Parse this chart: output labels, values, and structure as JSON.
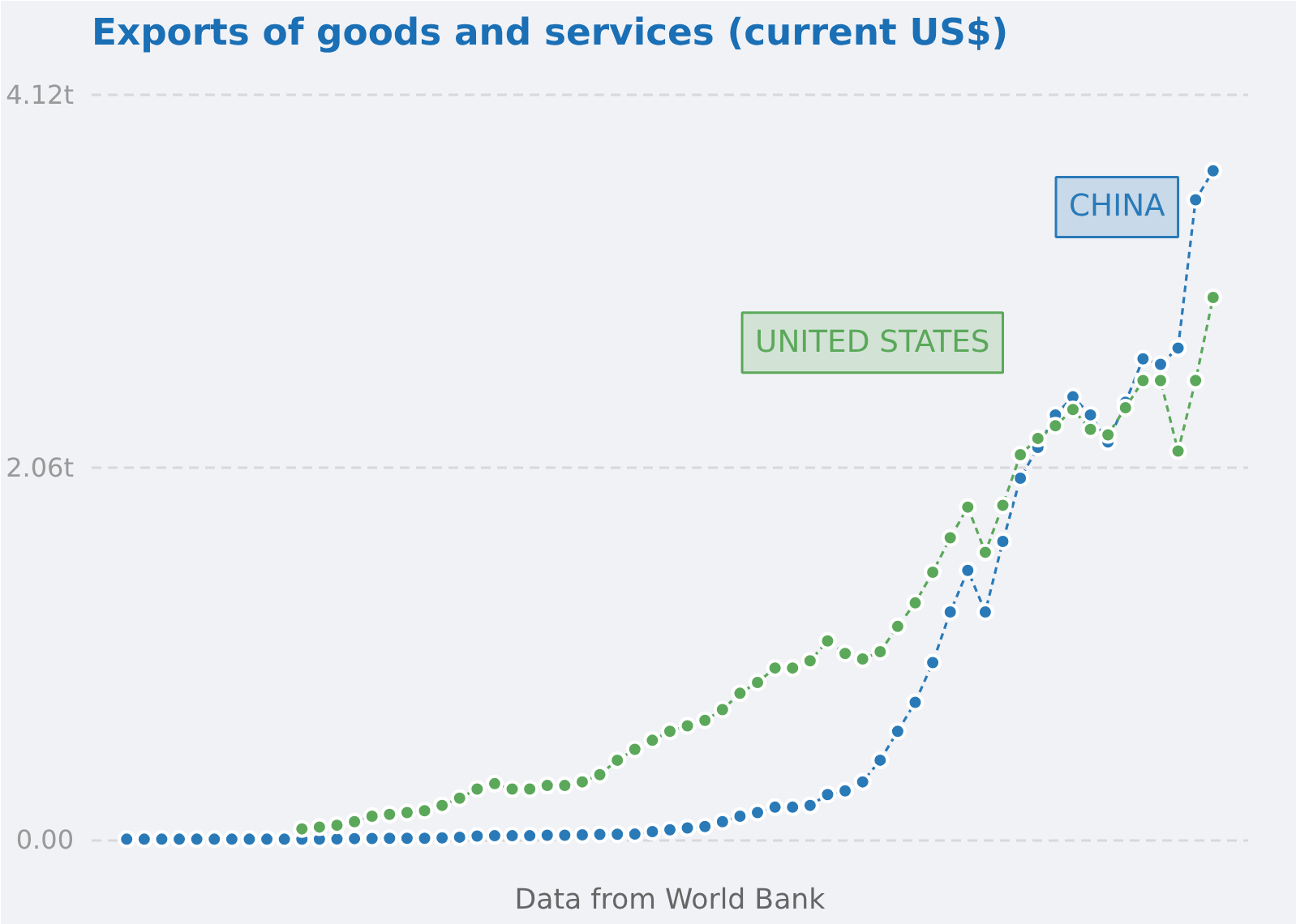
{
  "chart_data": {
    "type": "line",
    "title": "Exports of goods and services (current US$)",
    "categories": [
      null,
      null,
      null,
      null,
      null,
      null,
      null,
      null,
      null,
      null,
      null,
      null,
      null,
      null,
      null,
      null,
      null,
      null,
      null,
      null,
      null,
      null,
      null,
      null,
      null,
      null,
      null,
      null,
      null,
      null,
      null,
      null,
      null,
      null,
      null,
      null,
      null,
      null,
      null,
      null,
      null,
      null,
      null,
      null,
      null,
      null,
      null,
      null,
      null,
      null,
      null,
      null,
      null,
      null,
      null,
      null,
      null,
      null,
      null,
      null,
      null,
      null,
      null
    ],
    "series": [
      {
        "name": "CHINA",
        "color": "#2a7ab8",
        "values": [
          0.003,
          0.003,
          0.003,
          0.003,
          0.003,
          0.003,
          0.003,
          0.003,
          0.003,
          0.003,
          0.003,
          0.003,
          0.004,
          0.006,
          0.007,
          0.008,
          0.008,
          0.008,
          0.01,
          0.014,
          0.02,
          0.022,
          0.022,
          0.022,
          0.025,
          0.025,
          0.027,
          0.029,
          0.03,
          0.031,
          0.045,
          0.055,
          0.065,
          0.073,
          0.1,
          0.13,
          0.15,
          0.18,
          0.18,
          0.19,
          0.25,
          0.27,
          0.32,
          0.44,
          0.6,
          0.76,
          0.98,
          1.26,
          1.49,
          1.26,
          1.65,
          2.0,
          2.17,
          2.35,
          2.45,
          2.35,
          2.2,
          2.42,
          2.66,
          2.63,
          2.72,
          3.54,
          3.7
        ]
      },
      {
        "name": "UNITED STATES",
        "color": "#5ba85a",
        "values": [
          null,
          null,
          null,
          null,
          null,
          null,
          null,
          null,
          null,
          null,
          0.06,
          0.07,
          0.08,
          0.1,
          0.13,
          0.14,
          0.15,
          0.16,
          0.19,
          0.23,
          0.28,
          0.31,
          0.28,
          0.28,
          0.3,
          0.3,
          0.32,
          0.36,
          0.44,
          0.5,
          0.55,
          0.6,
          0.63,
          0.66,
          0.72,
          0.81,
          0.87,
          0.95,
          0.95,
          0.99,
          1.1,
          1.03,
          1.0,
          1.04,
          1.18,
          1.31,
          1.48,
          1.67,
          1.84,
          1.59,
          1.85,
          2.13,
          2.22,
          2.29,
          2.38,
          2.27,
          2.24,
          2.39,
          2.54,
          2.54,
          2.15,
          2.54,
          3.0
        ]
      }
    ],
    "ylim": [
      -0.13,
      4.3
    ],
    "yticks": [
      {
        "value": 0,
        "label": "0.00"
      },
      {
        "value": 2.06,
        "label": "2.06t"
      },
      {
        "value": 4.12,
        "label": "4.12t"
      }
    ],
    "grid": "y",
    "marker": "circle",
    "line_style": "dashed",
    "legend": false,
    "tick_labels": "y",
    "annotations": [
      "Data from World Bank"
    ]
  }
}
